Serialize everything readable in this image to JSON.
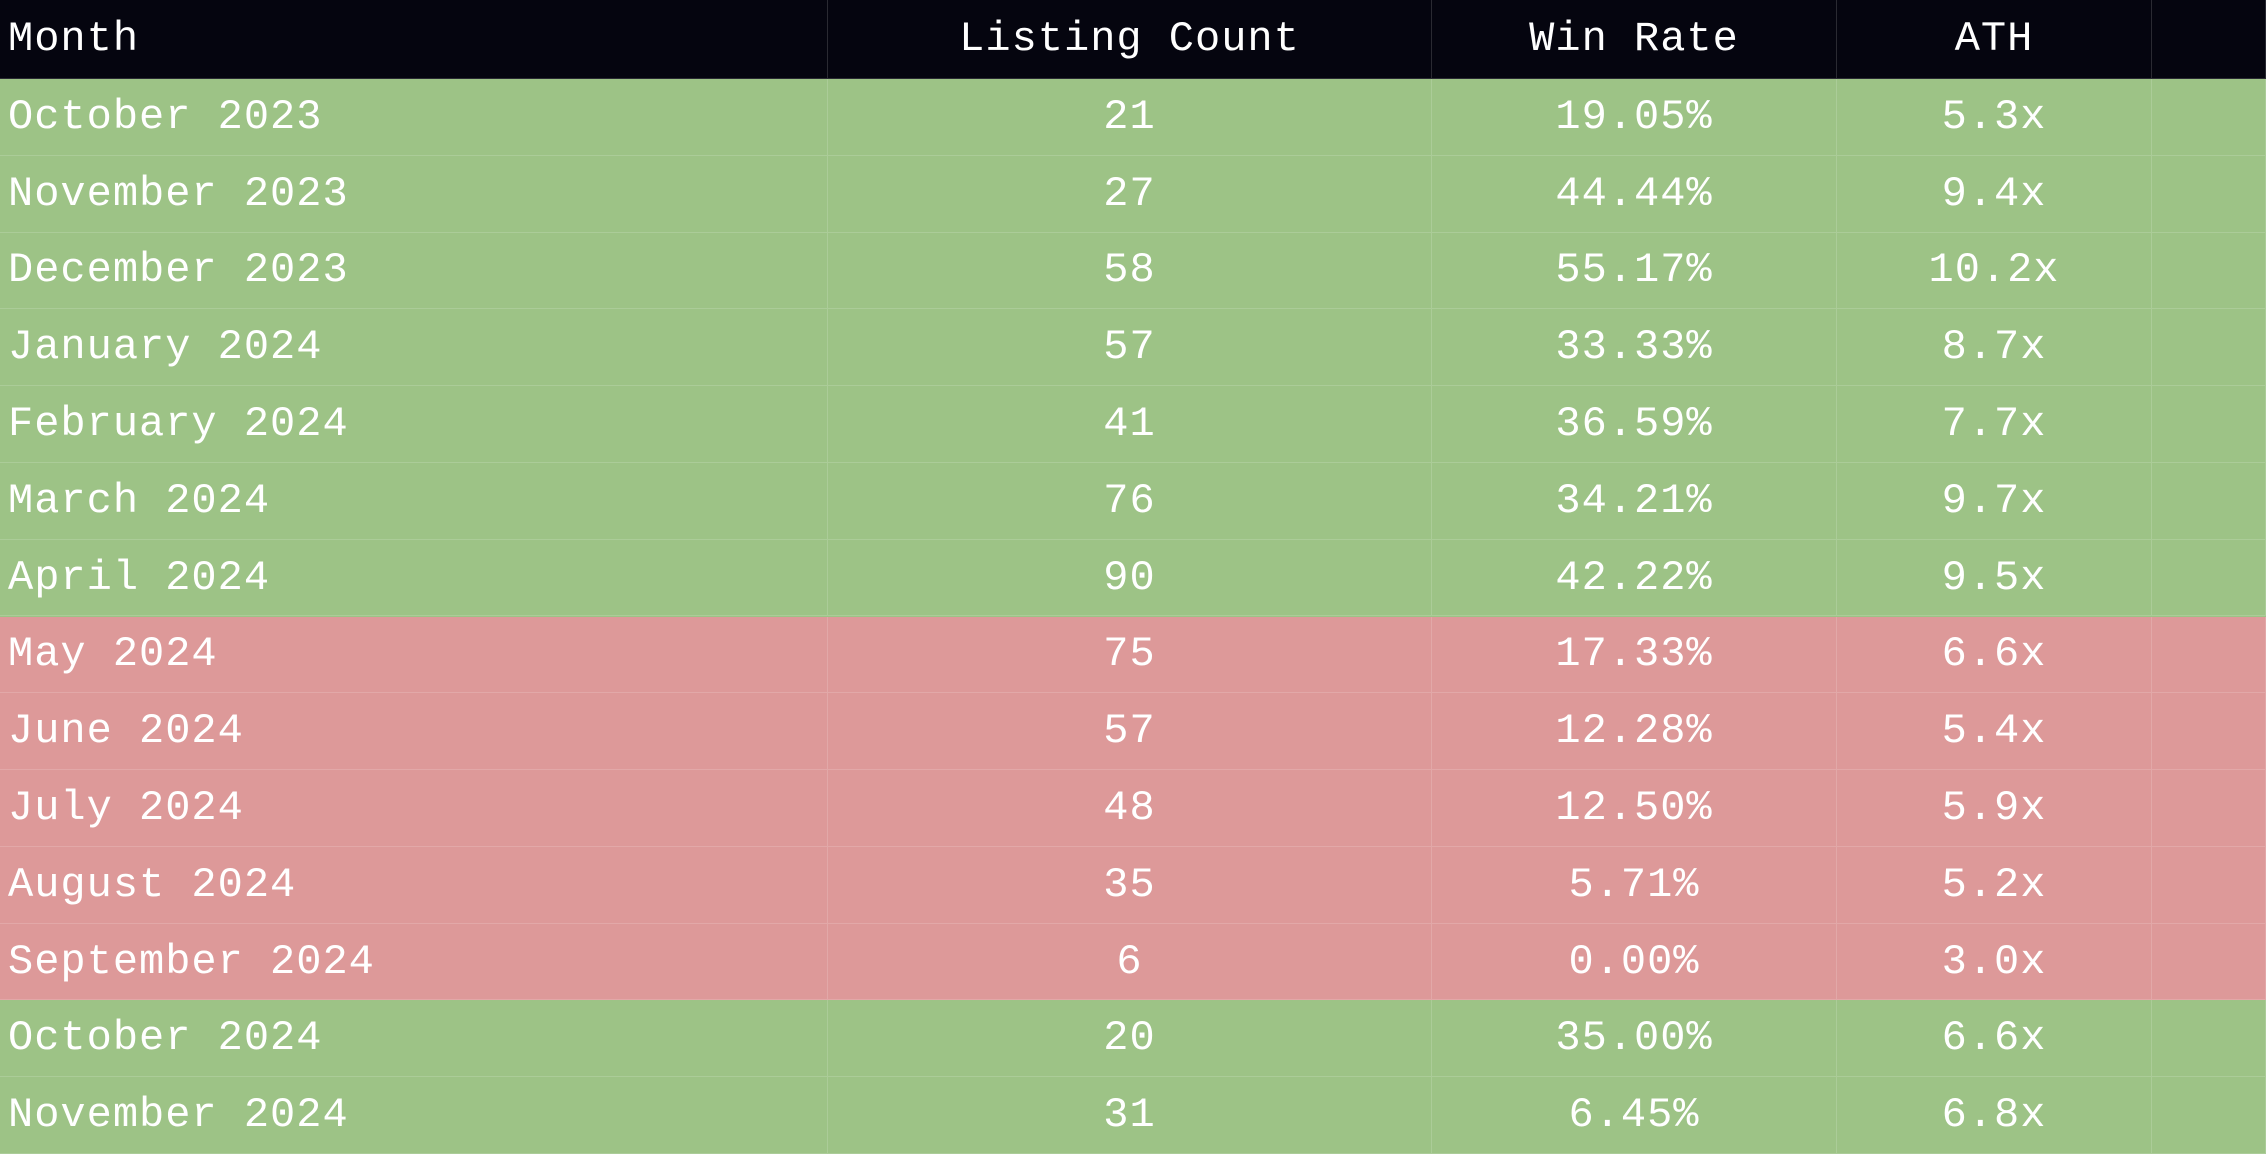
{
  "table": {
    "columns": [
      "Month",
      "Listing Count",
      "Win Rate",
      "ATH"
    ],
    "rows": [
      [
        "October 2023",
        21,
        "19.05%",
        "5.3x"
      ],
      [
        "November 2023",
        27,
        "44.44%",
        "9.4x"
      ],
      [
        "December 2023",
        58,
        "55.17%",
        "10.2x"
      ],
      [
        "January 2024",
        57,
        "33.33%",
        "8.7x"
      ],
      [
        "February 2024",
        41,
        "36.59%",
        "7.7x"
      ],
      [
        "March 2024",
        76,
        "34.21%",
        "9.7x"
      ],
      [
        "April 2024",
        90,
        "42.22%",
        "9.5x"
      ],
      [
        "May 2024",
        75,
        "17.33%",
        "6.6x"
      ],
      [
        "June 2024",
        57,
        "12.28%",
        "5.4x"
      ],
      [
        "July 2024",
        48,
        "12.50%",
        "5.9x"
      ],
      [
        "August 2024",
        35,
        "5.71%",
        "5.2x"
      ],
      [
        "September 2024",
        6,
        "0.00%",
        "3.0x"
      ],
      [
        "October 2024",
        20,
        "35.00%",
        "6.6x"
      ],
      [
        "November 2024",
        31,
        "6.45%",
        "6.8x"
      ]
    ],
    "row_colors": [
      "#9dc386",
      "#9dc386",
      "#9dc386",
      "#9dc386",
      "#9dc386",
      "#9dc386",
      "#9dc386",
      "#dd9999",
      "#dd9999",
      "#dd9999",
      "#dd9999",
      "#dd9999",
      "#9dc386",
      "#9dc386"
    ],
    "header_color": "#05050f"
  }
}
